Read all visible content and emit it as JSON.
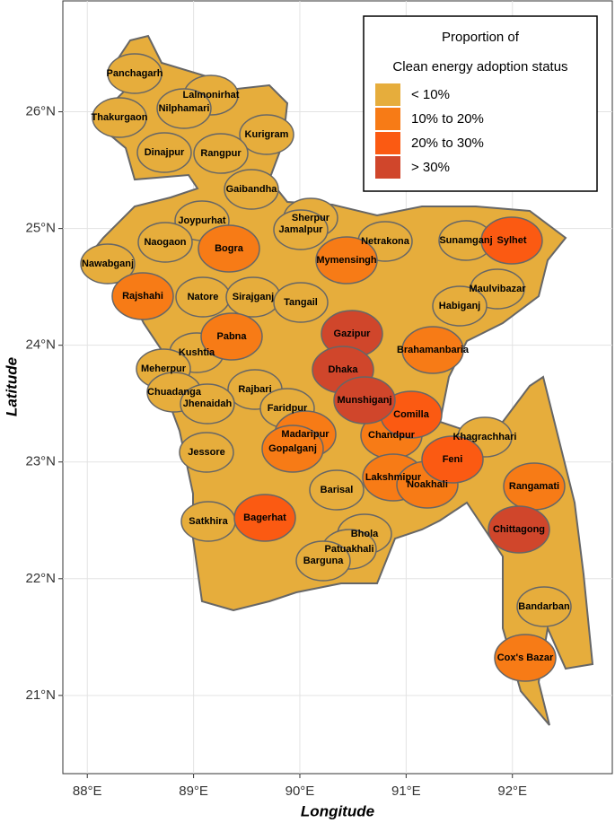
{
  "chart_data": {
    "type": "map",
    "xlabel": "Longitude",
    "ylabel": "Latitude",
    "xlim": [
      87.77,
      92.94
    ],
    "ylim": [
      20.33,
      26.95
    ],
    "xticks": [
      {
        "value": 88,
        "label": "88°E"
      },
      {
        "value": 89,
        "label": "89°E"
      },
      {
        "value": 90,
        "label": "90°E"
      },
      {
        "value": 91,
        "label": "91°E"
      },
      {
        "value": 92,
        "label": "92°E"
      }
    ],
    "yticks": [
      {
        "value": 21,
        "label": "21°N"
      },
      {
        "value": 22,
        "label": "22°N"
      },
      {
        "value": 23,
        "label": "23°N"
      },
      {
        "value": 24,
        "label": "24°N"
      },
      {
        "value": 25,
        "label": "25°N"
      },
      {
        "value": 26,
        "label": "26°N"
      }
    ],
    "grid": true,
    "legend": {
      "title": [
        "Proportion of",
        "Clean energy adoption status"
      ],
      "position": "top-right",
      "entries": [
        {
          "label": "< 10%",
          "color": "#e6ad3c"
        },
        {
          "label": "10% to 20%",
          "color": "#f77b16"
        },
        {
          "label": "20% to 30%",
          "color": "#fb5a12"
        },
        {
          "label": "> 30%",
          "color": "#d0462b"
        }
      ]
    },
    "regions": [
      {
        "name": "Panchagarh",
        "class": 0
      },
      {
        "name": "Lalmonirhat",
        "class": 0
      },
      {
        "name": "Nilphamari",
        "class": 0
      },
      {
        "name": "Thakurgaon",
        "class": 0
      },
      {
        "name": "Kurigram",
        "class": 0
      },
      {
        "name": "Dinajpur",
        "class": 0
      },
      {
        "name": "Rangpur",
        "class": 0
      },
      {
        "name": "Gaibandha",
        "class": 0
      },
      {
        "name": "Joypurhat",
        "class": 0
      },
      {
        "name": "Sherpur",
        "class": 0
      },
      {
        "name": "Jamalpur",
        "class": 0
      },
      {
        "name": "Naogaon",
        "class": 0
      },
      {
        "name": "Bogra",
        "class": 1
      },
      {
        "name": "Netrakona",
        "class": 0
      },
      {
        "name": "Sunamganj",
        "class": 0
      },
      {
        "name": "Sylhet",
        "class": 2
      },
      {
        "name": "Nawabganj",
        "class": 0
      },
      {
        "name": "Mymensingh",
        "class": 1
      },
      {
        "name": "Rajshahi",
        "class": 1
      },
      {
        "name": "Natore",
        "class": 0
      },
      {
        "name": "Sirajganj",
        "class": 0
      },
      {
        "name": "Tangail",
        "class": 0
      },
      {
        "name": "Maulvibazar",
        "class": 0
      },
      {
        "name": "Habiganj",
        "class": 0
      },
      {
        "name": "Gazipur",
        "class": 3
      },
      {
        "name": "Pabna",
        "class": 1
      },
      {
        "name": "Brahamanbaria",
        "class": 1
      },
      {
        "name": "Kushtia",
        "class": 0
      },
      {
        "name": "Dhaka",
        "class": 3
      },
      {
        "name": "Meherpur",
        "class": 0
      },
      {
        "name": "Chuadanga",
        "class": 0
      },
      {
        "name": "Rajbari",
        "class": 0
      },
      {
        "name": "Munshiganj",
        "class": 3
      },
      {
        "name": "Jhenaidah",
        "class": 0
      },
      {
        "name": "Faridpur",
        "class": 0
      },
      {
        "name": "Comilla",
        "class": 2
      },
      {
        "name": "Chandpur",
        "class": 1
      },
      {
        "name": "Madaripur",
        "class": 1
      },
      {
        "name": "Khagrachhari",
        "class": 0
      },
      {
        "name": "Gopalganj",
        "class": 1
      },
      {
        "name": "Jessore",
        "class": 0
      },
      {
        "name": "Feni",
        "class": 2
      },
      {
        "name": "Lakshmipur",
        "class": 1
      },
      {
        "name": "Noakhali",
        "class": 1
      },
      {
        "name": "Rangamati",
        "class": 1
      },
      {
        "name": "Barisal",
        "class": 0
      },
      {
        "name": "Bagerhat",
        "class": 2
      },
      {
        "name": "Satkhira",
        "class": 0
      },
      {
        "name": "Chittagong",
        "class": 3
      },
      {
        "name": "Bhola",
        "class": 0
      },
      {
        "name": "Patuakhali",
        "class": 0
      },
      {
        "name": "Barguna",
        "class": 0
      },
      {
        "name": "Bandarban",
        "class": 0
      },
      {
        "name": "Cox's Bazar",
        "class": 1
      }
    ]
  }
}
